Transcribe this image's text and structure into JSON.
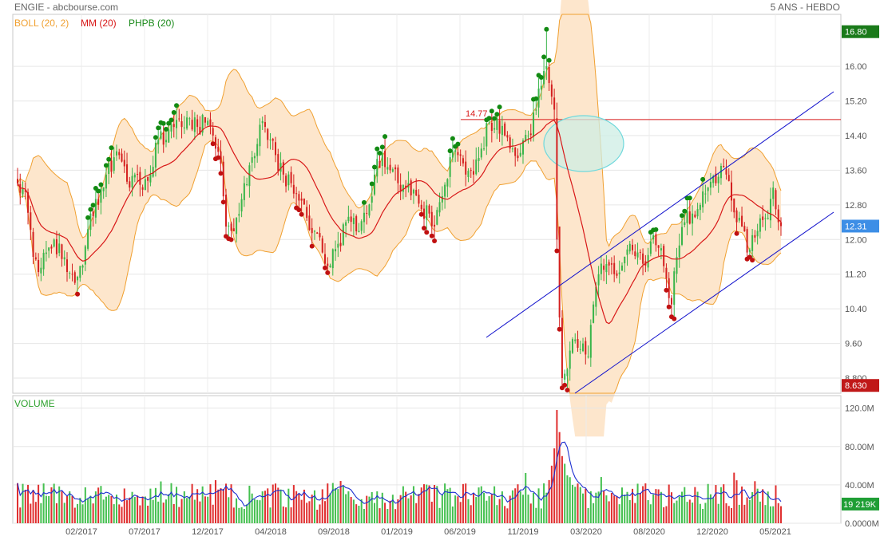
{
  "header": {
    "title": "ENGIE - abcbourse.com",
    "period": "5 ANS - HEBDO"
  },
  "legend": [
    {
      "label": "BOLL (20, 2)",
      "color": "#f0a030"
    },
    {
      "label": "MM (20)",
      "color": "#d81818"
    },
    {
      "label": "PHPB (20)",
      "color": "#1a8a1a"
    }
  ],
  "volume_label": "VOLUME",
  "colors": {
    "up": "#39b54a",
    "down": "#d42020",
    "band_fill": "#fde6cc",
    "band_line": "#f0a030",
    "ma": "#d81818",
    "channel": "#1010cc",
    "ellipse_fill": "#cdeee4",
    "ellipse_stroke": "#6fd8dc",
    "last_price_badge": "#3d8ee6",
    "high_badge": "#1a7a1a",
    "low_badge": "#c01818",
    "volume_ma": "#1c2fd0"
  },
  "chart_data": [
    {
      "type": "candlestick",
      "title": "ENGIE - abcbourse.com",
      "x_ticks": [
        "02/2017",
        "07/2017",
        "12/2017",
        "04/2018",
        "09/2018",
        "01/2019",
        "06/2019",
        "11/2019",
        "03/2020",
        "08/2020",
        "12/2020",
        "05/2021"
      ],
      "y_ticks": [
        "16.00",
        "15.20",
        "14.40",
        "13.60",
        "12.80",
        "12.00",
        "11.20",
        "10.40",
        "9.60",
        "8.800"
      ],
      "ylim": [
        8.45,
        17.2
      ],
      "grid": true,
      "series": [
        {
          "name": "BOLL (20, 2)",
          "kind": "band"
        },
        {
          "name": "MM (20)",
          "kind": "line"
        },
        {
          "name": "PHPB (20)",
          "kind": "markers"
        }
      ],
      "annotations": {
        "horizontal_line": {
          "value": 14.77,
          "label": "14.77"
        },
        "last_price": "12.31",
        "period_high": "16.80",
        "period_low": "8.630",
        "channel_upper": [
          {
            "x": "03/2020",
            "y": 11.35
          },
          {
            "x": "05/2021",
            "y": 15.8
          }
        ],
        "channel_lower": [
          {
            "x": "03/2020",
            "y": 8.6
          },
          {
            "x": "05/2021",
            "y": 12.85
          }
        ],
        "channel_middle": [
          {
            "x": "11/2019",
            "y": 9.75
          },
          {
            "x": "05/2021",
            "y": 15.8
          }
        ]
      },
      "weekly_close_anchors": [
        [
          0,
          13.3
        ],
        [
          3,
          13.1
        ],
        [
          6,
          11.6
        ],
        [
          8,
          11.25
        ],
        [
          11,
          11.7
        ],
        [
          14,
          12.0
        ],
        [
          17,
          11.55
        ],
        [
          19,
          11.25
        ],
        [
          22,
          11.0
        ],
        [
          25,
          11.4
        ],
        [
          28,
          12.6
        ],
        [
          31,
          12.8
        ],
        [
          34,
          13.5
        ],
        [
          37,
          13.9
        ],
        [
          40,
          13.8
        ],
        [
          43,
          13.2
        ],
        [
          45,
          13.5
        ],
        [
          48,
          13.15
        ],
        [
          51,
          13.5
        ],
        [
          54,
          14.3
        ],
        [
          57,
          14.3
        ],
        [
          60,
          14.6
        ],
        [
          63,
          14.6
        ],
        [
          66,
          14.8
        ],
        [
          69,
          14.6
        ],
        [
          72,
          14.7
        ],
        [
          75,
          14.4
        ],
        [
          78,
          13.75
        ],
        [
          80,
          12.3
        ],
        [
          82,
          12.2
        ],
        [
          84,
          12.5
        ],
        [
          87,
          13.3
        ],
        [
          90,
          13.9
        ],
        [
          93,
          14.65
        ],
        [
          96,
          14.3
        ],
        [
          99,
          13.95
        ],
        [
          102,
          13.5
        ],
        [
          105,
          13.3
        ],
        [
          108,
          12.9
        ],
        [
          111,
          12.5
        ],
        [
          114,
          12.2
        ],
        [
          117,
          11.7
        ],
        [
          120,
          11.4
        ],
        [
          123,
          11.9
        ],
        [
          126,
          12.4
        ],
        [
          129,
          12.5
        ],
        [
          131,
          12.2
        ],
        [
          134,
          12.6
        ],
        [
          137,
          13.5
        ],
        [
          140,
          14.0
        ],
        [
          143,
          13.6
        ],
        [
          146,
          13.3
        ],
        [
          149,
          13.2
        ],
        [
          152,
          13.15
        ],
        [
          155,
          12.7
        ],
        [
          158,
          12.6
        ],
        [
          160,
          12.3
        ],
        [
          163,
          13.0
        ],
        [
          166,
          13.9
        ],
        [
          169,
          13.95
        ],
        [
          172,
          13.5
        ],
        [
          175,
          13.5
        ],
        [
          178,
          14.1
        ],
        [
          181,
          14.7
        ],
        [
          184,
          14.8
        ],
        [
          187,
          14.4
        ],
        [
          190,
          14.1
        ],
        [
          193,
          14.0
        ],
        [
          196,
          14.4
        ],
        [
          199,
          15.0
        ],
        [
          201,
          15.55
        ],
        [
          203,
          16.0
        ],
        [
          205,
          15.3
        ],
        [
          206,
          15.0
        ],
        [
          207,
          12.0
        ],
        [
          208,
          10.2
        ],
        [
          209,
          8.8
        ],
        [
          211,
          9.0
        ],
        [
          213,
          9.7
        ],
        [
          215,
          9.5
        ],
        [
          217,
          9.6
        ],
        [
          219,
          9.3
        ],
        [
          221,
          10.5
        ],
        [
          223,
          11.2
        ],
        [
          225,
          11.3
        ],
        [
          227,
          11.4
        ],
        [
          229,
          11.2
        ],
        [
          232,
          11.4
        ],
        [
          235,
          11.9
        ],
        [
          238,
          11.7
        ],
        [
          241,
          11.4
        ],
        [
          244,
          12.1
        ],
        [
          247,
          11.8
        ],
        [
          249,
          11.1
        ],
        [
          251,
          10.5
        ],
        [
          253,
          11.6
        ],
        [
          256,
          12.4
        ],
        [
          259,
          12.6
        ],
        [
          262,
          12.8
        ],
        [
          265,
          13.2
        ],
        [
          268,
          13.3
        ],
        [
          270,
          13.7
        ],
        [
          272,
          13.5
        ],
        [
          274,
          12.9
        ],
        [
          276,
          12.4
        ],
        [
          278,
          12.3
        ],
        [
          280,
          11.7
        ],
        [
          282,
          12.1
        ],
        [
          284,
          12.2
        ],
        [
          286,
          12.45
        ],
        [
          288,
          12.5
        ],
        [
          290,
          13.2
        ],
        [
          291,
          12.7
        ],
        [
          292,
          12.4
        ],
        [
          293,
          12.31
        ]
      ]
    },
    {
      "type": "bar",
      "title": "VOLUME",
      "y_ticks": [
        "120.0M",
        "80.00M",
        "40.00M",
        "0.0000M"
      ],
      "ylim": [
        0,
        128
      ],
      "last_value": "19 219K",
      "x_ticks": [
        "02/2017",
        "07/2017",
        "12/2017",
        "04/2018",
        "09/2018",
        "01/2019",
        "06/2019",
        "11/2019",
        "03/2020",
        "08/2020",
        "12/2020",
        "05/2021"
      ],
      "series": [
        {
          "name": "VOLUME"
        }
      ],
      "typical_range": [
        14,
        42
      ],
      "peak": {
        "x": "03/2020",
        "value": 118
      }
    }
  ]
}
